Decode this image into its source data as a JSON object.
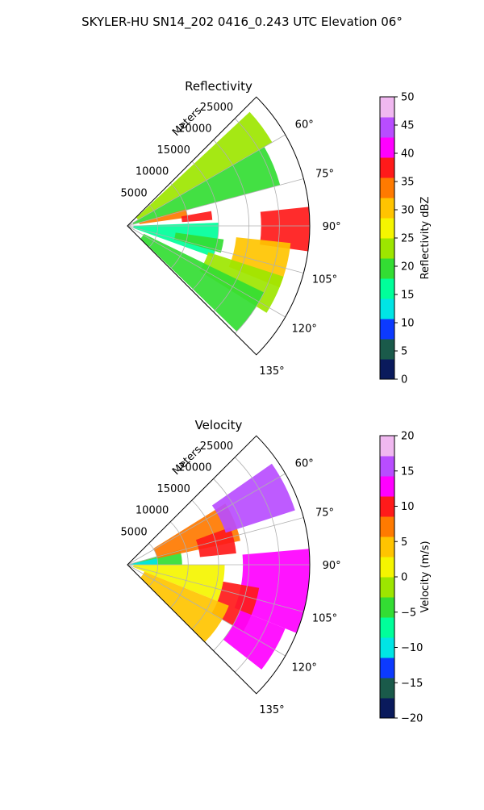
{
  "figure": {
    "suptitle": "SKYLER-HU  SN14_202  0416_0.243 UTC Elevation 06°"
  },
  "chart_data": [
    {
      "type": "heatmap",
      "projection": "polar-sector",
      "title": "Reflectivity",
      "range_axis_label": "Meters",
      "range_ticks": [
        5000,
        10000,
        15000,
        20000,
        25000
      ],
      "range_tick_labels": [
        "5000",
        "10000",
        "15000",
        "20000",
        "25000"
      ],
      "azimuth_range_deg": [
        45,
        135
      ],
      "azimuth_ticks": [
        60,
        75,
        90,
        105,
        120,
        135
      ],
      "azimuth_tick_labels": [
        "60°",
        "75°",
        "90°",
        "105°",
        "120°",
        "135°"
      ],
      "rlim": [
        0,
        30000
      ],
      "grid": true,
      "colorbar": {
        "label": "Reflectivity dBZ",
        "vmin": 0,
        "vmax": 50,
        "ticks": [
          0,
          5,
          10,
          15,
          20,
          25,
          30,
          35,
          40,
          45,
          50
        ],
        "tick_labels": [
          "0",
          "5",
          "10",
          "15",
          "20",
          "25",
          "30",
          "35",
          "40",
          "45",
          "50"
        ],
        "colors": [
          "#0a1a5c",
          "#1a5a4a",
          "#0c3aff",
          "#00e5e5",
          "#00ff9a",
          "#33dd33",
          "#9de600",
          "#f5f500",
          "#ffc400",
          "#ff7a00",
          "#ff1a1a",
          "#ff00ff",
          "#b84dff",
          "#f0b8f0"
        ]
      },
      "echo_regions": [
        {
          "az": [
            47,
            60
          ],
          "r": [
            2000,
            27500
          ],
          "value": 22
        },
        {
          "az": [
            60,
            75
          ],
          "r": [
            1000,
            26000
          ],
          "value": 20
        },
        {
          "az": [
            74,
            82
          ],
          "r": [
            2000,
            10000
          ],
          "value": 34
        },
        {
          "az": [
            80,
            86
          ],
          "r": [
            9000,
            14000
          ],
          "value": 36
        },
        {
          "az": [
            84,
            98
          ],
          "r": [
            22000,
            30000
          ],
          "value": 38
        },
        {
          "az": [
            96,
            112
          ],
          "r": [
            18000,
            27000
          ],
          "value": 32
        },
        {
          "az": [
            88,
            110
          ],
          "r": [
            1000,
            15000
          ],
          "value": 17
        },
        {
          "az": [
            108,
            122
          ],
          "r": [
            14000,
            27000
          ],
          "value": 23
        },
        {
          "az": [
            116,
            134
          ],
          "r": [
            3000,
            25000
          ],
          "value": 19
        },
        {
          "az": [
            98,
            106
          ],
          "r": [
            8000,
            16000
          ],
          "value": 21
        }
      ]
    },
    {
      "type": "heatmap",
      "projection": "polar-sector",
      "title": "Velocity",
      "range_axis_label": "Meters",
      "range_ticks": [
        5000,
        10000,
        15000,
        20000,
        25000
      ],
      "range_tick_labels": [
        "5000",
        "10000",
        "15000",
        "20000",
        "25000"
      ],
      "azimuth_range_deg": [
        45,
        135
      ],
      "azimuth_ticks": [
        60,
        75,
        90,
        105,
        120,
        135
      ],
      "azimuth_tick_labels": [
        "60°",
        "75°",
        "90°",
        "105°",
        "120°",
        "135°"
      ],
      "rlim": [
        0,
        30000
      ],
      "grid": true,
      "colorbar": {
        "label": "Velocity (m/s)",
        "vmin": -20,
        "vmax": 20,
        "ticks": [
          -20,
          -15,
          -10,
          -5,
          0,
          5,
          10,
          15,
          20
        ],
        "tick_labels": [
          "−20",
          "−15",
          "−10",
          "−5",
          "0",
          "5",
          "10",
          "15",
          "20"
        ],
        "colors": [
          "#0a1a5c",
          "#1a5a4a",
          "#0c3aff",
          "#00e5e5",
          "#00ff9a",
          "#33dd33",
          "#9de600",
          "#f5f500",
          "#ffc400",
          "#ff7a00",
          "#ff1a1a",
          "#ff00ff",
          "#b84dff",
          "#f0b8f0"
        ]
      },
      "echo_regions": [
        {
          "az": [
            74,
            90
          ],
          "r": [
            1000,
            9000
          ],
          "value": -5
        },
        {
          "az": [
            78,
            90
          ],
          "r": [
            500,
            5000
          ],
          "value": -9
        },
        {
          "az": [
            58,
            78
          ],
          "r": [
            5000,
            19000
          ],
          "value": 7
        },
        {
          "az": [
            70,
            84
          ],
          "r": [
            12000,
            18000
          ],
          "value": 10
        },
        {
          "az": [
            55,
            72
          ],
          "r": [
            17000,
            29000
          ],
          "value": 15
        },
        {
          "az": [
            85,
            112
          ],
          "r": [
            19000,
            30000
          ],
          "value": 14
        },
        {
          "az": [
            90,
            112
          ],
          "r": [
            1000,
            16000
          ],
          "value": 2
        },
        {
          "az": [
            100,
            120
          ],
          "r": [
            16000,
            22000
          ],
          "value": 9
        },
        {
          "az": [
            112,
            128
          ],
          "r": [
            20000,
            28000
          ],
          "value": 13
        },
        {
          "az": [
            112,
            135
          ],
          "r": [
            3000,
            18000
          ],
          "value": 4
        }
      ]
    }
  ]
}
